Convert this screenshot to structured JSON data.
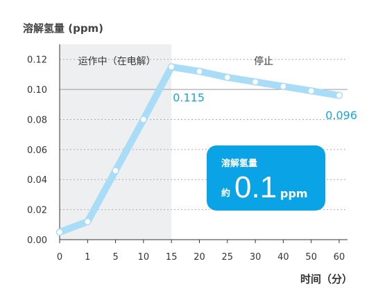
{
  "chart_data": {
    "type": "line",
    "ylabel": "溶解氢量 (ppm)",
    "xlabel": "时间（分）",
    "x_ticks": [
      0,
      1,
      5,
      10,
      15,
      20,
      25,
      30,
      40,
      50,
      60
    ],
    "y_ticks": [
      "0.00",
      "0.02",
      "0.04",
      "0.06",
      "0.08",
      "0.10",
      "0.12"
    ],
    "ylim": [
      0,
      0.13
    ],
    "regions": [
      {
        "label": "运作中（在电解）",
        "from": 0,
        "to": 15,
        "shaded": true
      },
      {
        "label": "停止",
        "from": 15,
        "to": 60,
        "shaded": false
      }
    ],
    "series": [
      {
        "x": [
          0,
          1,
          5,
          10,
          15,
          20,
          25,
          30,
          40,
          50,
          60
        ],
        "values": [
          0.005,
          0.012,
          0.046,
          0.08,
          0.115,
          0.112,
          0.108,
          0.105,
          0.102,
          0.099,
          0.096
        ]
      }
    ],
    "data_labels": [
      {
        "x": 15,
        "text": "0.115"
      },
      {
        "x": 60,
        "text": "0.096"
      }
    ],
    "callout": {
      "title": "溶解氢量",
      "prefix": "約",
      "value": "0.1",
      "unit": "ppm"
    },
    "colors": {
      "line": "#a9dcf6",
      "marker_fill": "#ffffff",
      "label": "#17a5de",
      "callout_bg": "#0aa3e6",
      "shade": "#eeeff1"
    }
  }
}
